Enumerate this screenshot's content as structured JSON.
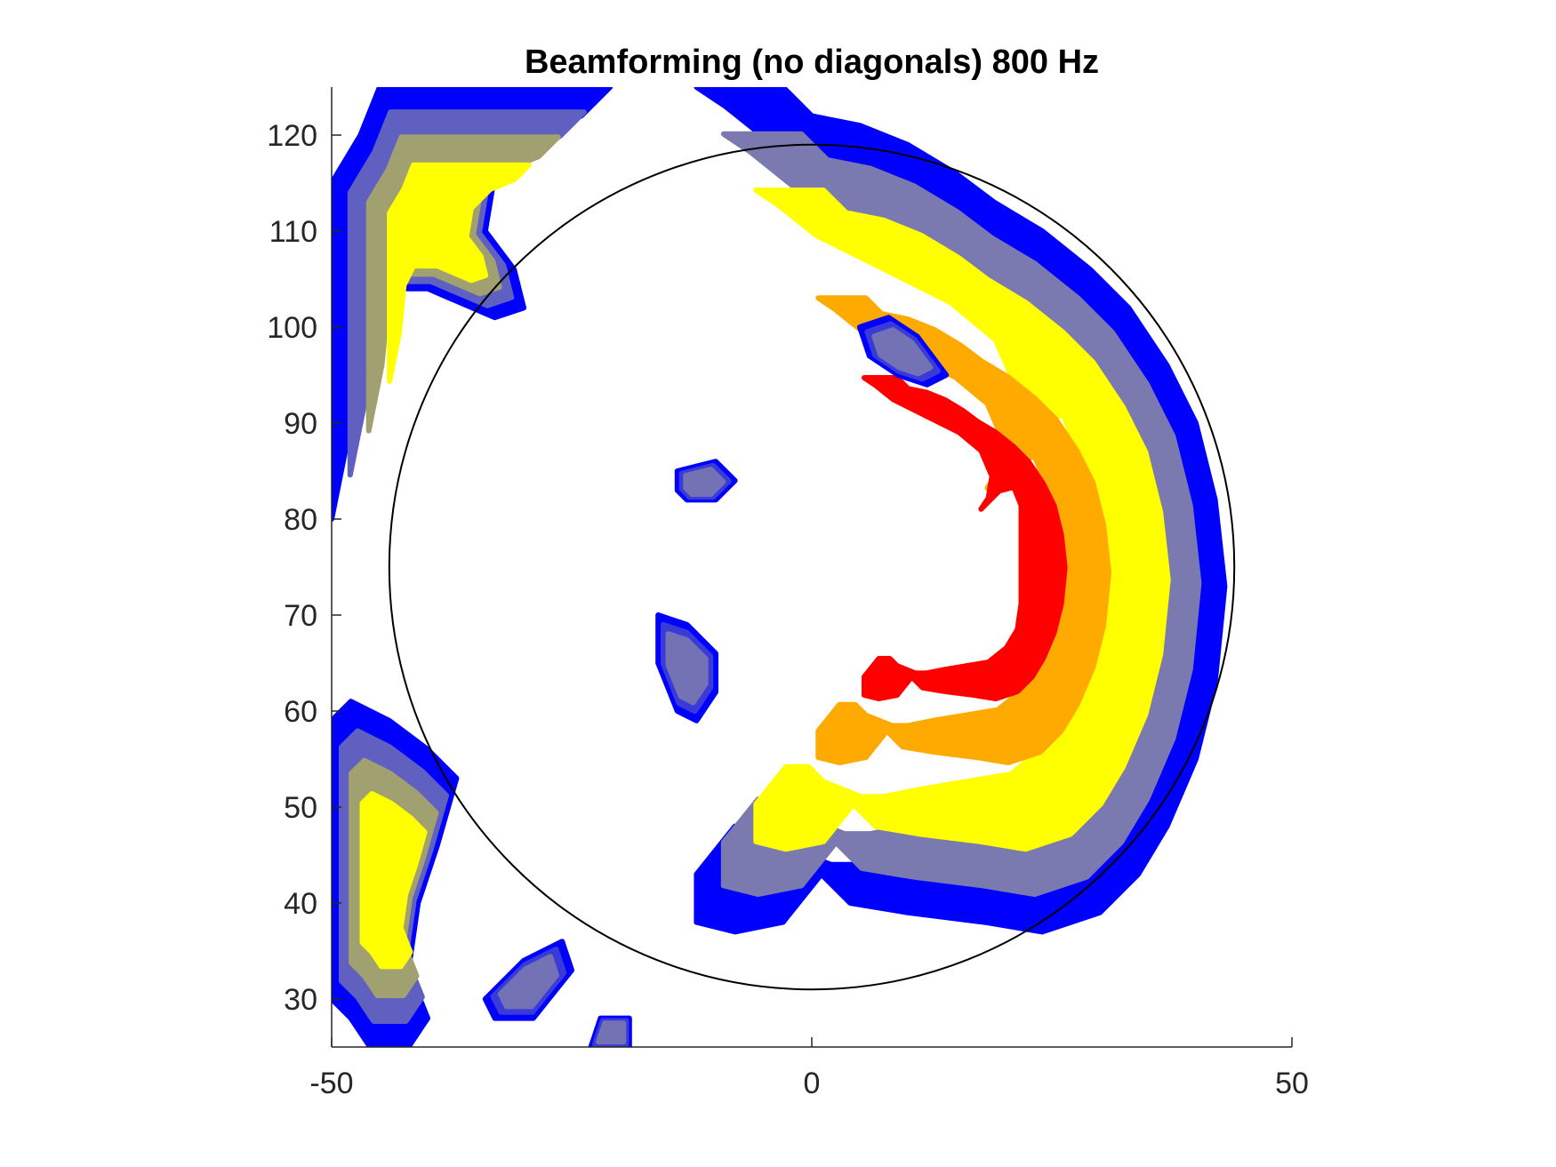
{
  "chart_data": {
    "type": "contour",
    "title": "Beamforming (no diagonals) 800 Hz",
    "xlabel": "",
    "ylabel": "",
    "xlim": [
      -50,
      50
    ],
    "ylim": [
      25,
      125
    ],
    "x_ticks": [
      -50,
      0,
      50
    ],
    "y_ticks": [
      30,
      40,
      50,
      60,
      70,
      80,
      90,
      100,
      110,
      120
    ],
    "grid": false,
    "colormap": [
      "#0000ff",
      "#ffff00",
      "#ff0000"
    ],
    "reference_circle": {
      "center": [
        0,
        75
      ],
      "radius": 44,
      "color": "#000000"
    },
    "contour_regions": [
      {
        "name": "main-arc",
        "peak_level": "high",
        "outline": [
          [
            1,
            43
          ],
          [
            4,
            40
          ],
          [
            10,
            39
          ],
          [
            18,
            38
          ],
          [
            24,
            37
          ],
          [
            30,
            39
          ],
          [
            34,
            43
          ],
          [
            37,
            48
          ],
          [
            40,
            55
          ],
          [
            42,
            63
          ],
          [
            43,
            73
          ],
          [
            42,
            82
          ],
          [
            40,
            90
          ],
          [
            37,
            96
          ],
          [
            33,
            102
          ],
          [
            29,
            106
          ],
          [
            24,
            110
          ],
          [
            19,
            113
          ],
          [
            15,
            116
          ],
          [
            10,
            119
          ],
          [
            5,
            121
          ],
          [
            0,
            122
          ],
          [
            -3,
            125
          ],
          [
            -12,
            125
          ],
          [
            -9,
            123
          ],
          [
            -4,
            119
          ],
          [
            2,
            116
          ],
          [
            8,
            113
          ],
          [
            14,
            110
          ],
          [
            20,
            105
          ],
          [
            23,
            98
          ],
          [
            22,
            92
          ],
          [
            20,
            89
          ],
          [
            25,
            94
          ],
          [
            29,
            95
          ],
          [
            31,
            90
          ],
          [
            31,
            82
          ],
          [
            31,
            72
          ],
          [
            31,
            63
          ],
          [
            30,
            56
          ],
          [
            27,
            51
          ],
          [
            22,
            47
          ],
          [
            16,
            46
          ],
          [
            10,
            45
          ],
          [
            5,
            44
          ],
          [
            2,
            44
          ],
          [
            -3,
            46
          ],
          [
            -5,
            48
          ],
          [
            -8,
            48
          ],
          [
            -12,
            43
          ],
          [
            -12,
            38
          ],
          [
            -8,
            37
          ],
          [
            -3,
            38
          ]
        ]
      },
      {
        "name": "top-left",
        "peak_level": "mid",
        "outline": [
          [
            -50,
            115
          ],
          [
            -47,
            120
          ],
          [
            -45,
            125
          ],
          [
            -21,
            125
          ],
          [
            -24,
            122
          ],
          [
            -29,
            120
          ],
          [
            -33,
            116
          ],
          [
            -34,
            110
          ],
          [
            -31,
            106
          ],
          [
            -30,
            102
          ],
          [
            -33,
            101
          ],
          [
            -40,
            104
          ],
          [
            -45,
            104
          ],
          [
            -47,
            100
          ],
          [
            -48,
            90
          ],
          [
            -50,
            80
          ]
        ]
      },
      {
        "name": "left-middle",
        "peak_level": "mid",
        "outline": [
          [
            -50,
            59
          ],
          [
            -48,
            61
          ],
          [
            -44,
            59
          ],
          [
            -40,
            56
          ],
          [
            -37,
            53
          ],
          [
            -39,
            46
          ],
          [
            -41,
            40
          ],
          [
            -42,
            33
          ],
          [
            -40,
            28
          ],
          [
            -42,
            25
          ],
          [
            -46,
            25
          ],
          [
            -48,
            28
          ],
          [
            -50,
            30
          ]
        ]
      },
      {
        "name": "blob-upper-center",
        "peak_level": "low",
        "outline": [
          [
            5,
            100
          ],
          [
            8,
            101
          ],
          [
            11,
            99
          ],
          [
            14,
            95
          ],
          [
            12,
            94
          ],
          [
            9,
            95
          ],
          [
            6,
            97
          ]
        ]
      },
      {
        "name": "blob-center-top",
        "peak_level": "low",
        "outline": [
          [
            -14,
            85
          ],
          [
            -10,
            86
          ],
          [
            -8,
            84
          ],
          [
            -10,
            82
          ],
          [
            -13,
            82
          ],
          [
            -14,
            83
          ]
        ]
      },
      {
        "name": "blob-center",
        "peak_level": "low",
        "outline": [
          [
            -16,
            70
          ],
          [
            -13,
            69
          ],
          [
            -10,
            66
          ],
          [
            -10,
            62
          ],
          [
            -12,
            59
          ],
          [
            -14,
            60
          ],
          [
            -16,
            65
          ]
        ]
      },
      {
        "name": "blob-lower-left",
        "peak_level": "low",
        "outline": [
          [
            -34,
            30
          ],
          [
            -30,
            34
          ],
          [
            -26,
            36
          ],
          [
            -25,
            33
          ],
          [
            -29,
            28
          ],
          [
            -33,
            28
          ]
        ]
      },
      {
        "name": "blob-bottom",
        "peak_level": "low",
        "outline": [
          [
            -23,
            25
          ],
          [
            -22,
            28
          ],
          [
            -19,
            28
          ],
          [
            -19,
            25
          ]
        ]
      }
    ]
  }
}
